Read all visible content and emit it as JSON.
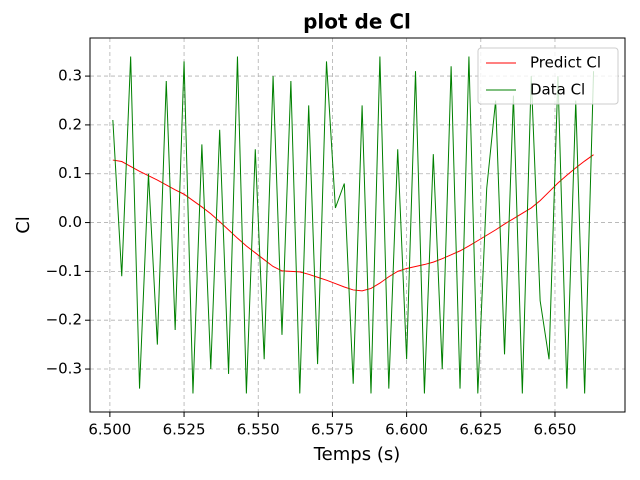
{
  "chart_data": {
    "type": "line",
    "title": "plot de Cl",
    "x_label": "Temps (s)",
    "y_label": "Cl",
    "x": [
      6.501,
      6.504,
      6.507,
      6.51,
      6.513,
      6.516,
      6.519,
      6.522,
      6.525,
      6.528,
      6.531,
      6.534,
      6.537,
      6.54,
      6.543,
      6.546,
      6.549,
      6.552,
      6.555,
      6.558,
      6.561,
      6.564,
      6.567,
      6.57,
      6.573,
      6.576,
      6.579,
      6.582,
      6.585,
      6.588,
      6.591,
      6.594,
      6.597,
      6.6,
      6.603,
      6.606,
      6.609,
      6.612,
      6.615,
      6.618,
      6.621,
      6.624,
      6.627,
      6.63,
      6.633,
      6.636,
      6.639,
      6.642,
      6.645,
      6.648,
      6.651,
      6.654,
      6.657,
      6.66,
      6.663
    ],
    "series": [
      {
        "name": "Predict Cl",
        "color": "#ff0000",
        "values": [
          0.128,
          0.125,
          0.115,
          0.105,
          0.096,
          0.087,
          0.077,
          0.067,
          0.058,
          0.045,
          0.032,
          0.018,
          0.002,
          -0.015,
          -0.032,
          -0.048,
          -0.062,
          -0.076,
          -0.09,
          -0.099,
          -0.1,
          -0.101,
          -0.106,
          -0.112,
          -0.118,
          -0.125,
          -0.132,
          -0.138,
          -0.14,
          -0.135,
          -0.124,
          -0.111,
          -0.1,
          -0.094,
          -0.09,
          -0.086,
          -0.081,
          -0.074,
          -0.066,
          -0.058,
          -0.048,
          -0.037,
          -0.026,
          -0.015,
          -0.003,
          0.008,
          0.019,
          0.03,
          0.045,
          0.063,
          0.081,
          0.097,
          0.112,
          0.126,
          0.139
        ]
      },
      {
        "name": "Data Cl",
        "color": "#008000",
        "values": [
          0.21,
          -0.11,
          0.34,
          -0.34,
          0.1,
          -0.25,
          0.29,
          -0.22,
          0.33,
          -0.35,
          0.16,
          -0.3,
          0.19,
          -0.31,
          0.34,
          -0.35,
          0.15,
          -0.28,
          0.3,
          -0.23,
          0.29,
          -0.35,
          0.24,
          -0.29,
          0.33,
          0.03,
          0.08,
          -0.33,
          0.24,
          -0.35,
          0.34,
          -0.34,
          0.15,
          -0.28,
          0.31,
          -0.35,
          0.14,
          -0.3,
          0.32,
          -0.34,
          0.34,
          -0.35,
          0.07,
          0.25,
          -0.27,
          0.26,
          -0.35,
          0.3,
          -0.16,
          -0.28,
          0.3,
          -0.34,
          0.25,
          -0.35,
          0.31
        ]
      }
    ],
    "xlim": [
      6.4933,
      6.6736
    ],
    "ylim": [
      -0.388,
      0.378
    ],
    "xticks": [
      {
        "value": 6.5,
        "label": "6.500"
      },
      {
        "value": 6.525,
        "label": "6.525"
      },
      {
        "value": 6.55,
        "label": "6.550"
      },
      {
        "value": 6.575,
        "label": "6.575"
      },
      {
        "value": 6.6,
        "label": "6.600"
      },
      {
        "value": 6.625,
        "label": "6.625"
      },
      {
        "value": 6.65,
        "label": "6.650"
      }
    ],
    "yticks": [
      {
        "value": -0.3,
        "label": "−0.3"
      },
      {
        "value": -0.2,
        "label": "−0.2"
      },
      {
        "value": -0.1,
        "label": "−0.1"
      },
      {
        "value": 0,
        "label": "0.0"
      },
      0.1,
      0.2,
      0.3
    ],
    "grid": true,
    "legend": "upper-right"
  }
}
